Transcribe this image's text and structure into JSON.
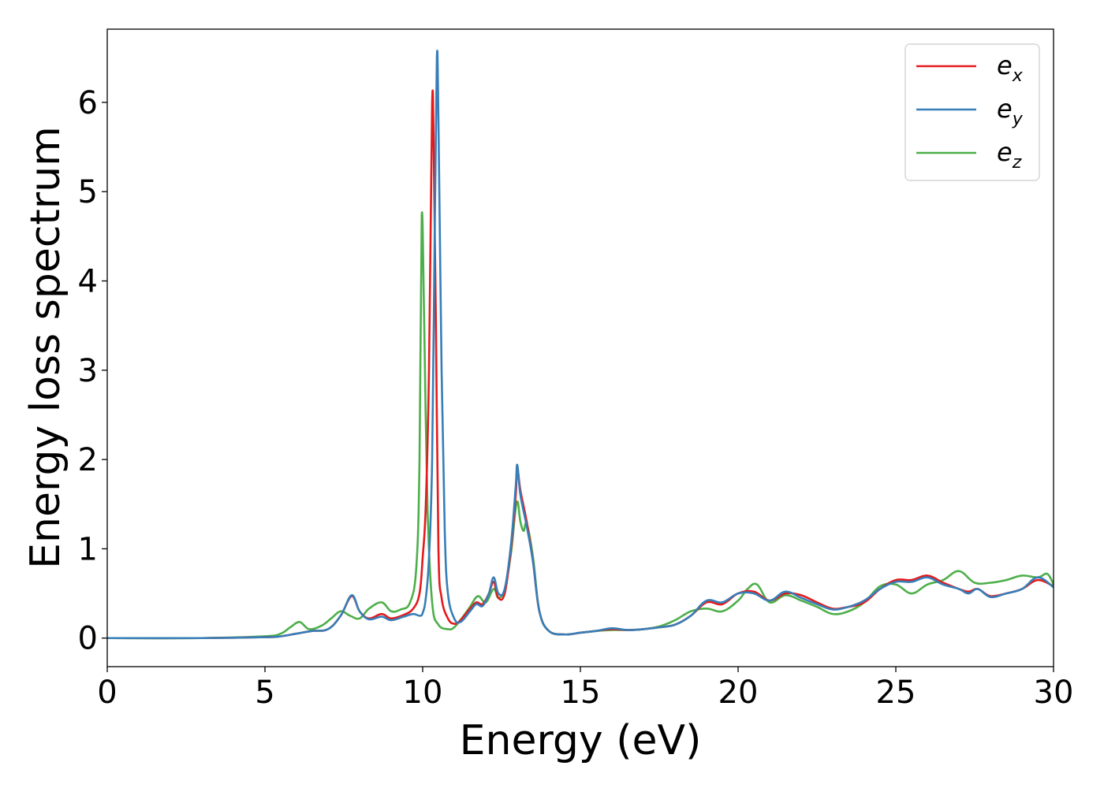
{
  "chart_data": {
    "type": "line",
    "title": "",
    "xlabel": "Energy (eV)",
    "ylabel": "Energy loss spectrum",
    "xlim": [
      0,
      30
    ],
    "ylim": [
      -0.32,
      6.82
    ],
    "xticks": [
      0,
      5,
      10,
      15,
      20,
      25,
      30
    ],
    "yticks": [
      0,
      1,
      2,
      3,
      4,
      5,
      6
    ],
    "grid": false,
    "legend_position": "top-right",
    "series": [
      {
        "name": "e_x",
        "legend_main": "e",
        "legend_sub": "x",
        "color": "#e41a1c",
        "x": [
          0,
          3,
          5,
          5.5,
          6,
          6.5,
          7,
          7.4,
          7.75,
          8.0,
          8.3,
          8.7,
          9.0,
          9.4,
          9.7,
          9.9,
          10.0,
          10.1,
          10.2,
          10.3,
          10.35,
          10.42,
          10.5,
          10.6,
          10.8,
          11.0,
          11.2,
          11.5,
          11.7,
          11.9,
          12.1,
          12.25,
          12.4,
          12.6,
          12.8,
          12.95,
          13.0,
          13.1,
          13.3,
          13.5,
          13.7,
          14.0,
          14.5,
          15,
          15.5,
          16,
          16.5,
          17,
          17.5,
          18,
          18.5,
          19,
          19.5,
          20,
          20.5,
          21,
          21.5,
          22,
          22.5,
          23,
          23.5,
          24,
          24.5,
          25,
          25.5,
          26,
          26.5,
          27,
          27.3,
          27.6,
          28,
          28.5,
          29,
          29.5,
          30
        ],
        "y": [
          0,
          0,
          0.01,
          0.02,
          0.05,
          0.08,
          0.1,
          0.25,
          0.47,
          0.3,
          0.22,
          0.27,
          0.22,
          0.26,
          0.33,
          0.5,
          0.9,
          1.5,
          3.0,
          5.99,
          5.5,
          3.5,
          1.0,
          0.45,
          0.22,
          0.16,
          0.2,
          0.33,
          0.4,
          0.38,
          0.5,
          0.63,
          0.45,
          0.5,
          1.0,
          1.6,
          1.9,
          1.65,
          1.3,
          0.85,
          0.3,
          0.08,
          0.04,
          0.06,
          0.08,
          0.1,
          0.09,
          0.1,
          0.12,
          0.15,
          0.25,
          0.4,
          0.38,
          0.5,
          0.52,
          0.42,
          0.5,
          0.48,
          0.4,
          0.33,
          0.35,
          0.4,
          0.55,
          0.65,
          0.65,
          0.7,
          0.62,
          0.55,
          0.52,
          0.55,
          0.47,
          0.5,
          0.55,
          0.65,
          0.58
        ]
      },
      {
        "name": "e_y",
        "legend_main": "e",
        "legend_sub": "y",
        "color": "#377eb8",
        "x": [
          0,
          3,
          5,
          5.5,
          6,
          6.5,
          7,
          7.4,
          7.75,
          8.0,
          8.3,
          8.7,
          9.0,
          9.4,
          9.7,
          9.9,
          10.0,
          10.1,
          10.2,
          10.3,
          10.38,
          10.45,
          10.5,
          10.6,
          10.7,
          10.8,
          11.0,
          11.2,
          11.5,
          11.7,
          11.9,
          12.1,
          12.25,
          12.4,
          12.6,
          12.8,
          12.95,
          13.0,
          13.1,
          13.3,
          13.5,
          13.7,
          14.0,
          14.5,
          15,
          15.5,
          16,
          16.5,
          17,
          17.5,
          18,
          18.5,
          19,
          19.5,
          20,
          20.5,
          21,
          21.5,
          22,
          22.5,
          23,
          23.5,
          24,
          24.5,
          25,
          25.5,
          26,
          26.5,
          27,
          27.3,
          27.6,
          28,
          28.5,
          29,
          29.5,
          30
        ],
        "y": [
          0,
          0,
          0.01,
          0.02,
          0.05,
          0.08,
          0.1,
          0.25,
          0.48,
          0.3,
          0.21,
          0.24,
          0.2,
          0.24,
          0.27,
          0.25,
          0.28,
          0.45,
          0.9,
          2.0,
          4.5,
          6.5,
          5.8,
          3.0,
          1.2,
          0.5,
          0.22,
          0.18,
          0.3,
          0.38,
          0.36,
          0.5,
          0.68,
          0.5,
          0.55,
          1.05,
          1.7,
          1.94,
          1.6,
          1.25,
          0.85,
          0.3,
          0.08,
          0.04,
          0.06,
          0.08,
          0.11,
          0.09,
          0.1,
          0.12,
          0.15,
          0.25,
          0.42,
          0.4,
          0.5,
          0.5,
          0.42,
          0.52,
          0.45,
          0.38,
          0.32,
          0.35,
          0.42,
          0.55,
          0.63,
          0.63,
          0.68,
          0.6,
          0.55,
          0.5,
          0.55,
          0.46,
          0.5,
          0.55,
          0.68,
          0.57
        ]
      },
      {
        "name": "e_z",
        "legend_main": "e",
        "legend_sub": "z",
        "color": "#4daf4a",
        "x": [
          0,
          3,
          5,
          5.5,
          5.8,
          6.1,
          6.4,
          6.8,
          7.1,
          7.4,
          7.7,
          8.0,
          8.3,
          8.7,
          9.0,
          9.3,
          9.6,
          9.8,
          9.9,
          9.97,
          10.05,
          10.15,
          10.3,
          10.5,
          10.8,
          11.0,
          11.3,
          11.5,
          11.75,
          12.0,
          12.25,
          12.4,
          12.6,
          12.8,
          12.98,
          13.1,
          13.2,
          13.3,
          13.5,
          13.7,
          14.0,
          14.5,
          15,
          15.5,
          16,
          16.5,
          17,
          17.5,
          18,
          18.5,
          19,
          19.5,
          20,
          20.3,
          20.6,
          21,
          21.5,
          22,
          22.5,
          23,
          23.5,
          24,
          24.5,
          25,
          25.5,
          26,
          26.5,
          27,
          27.5,
          28,
          28.5,
          29,
          29.5,
          29.8,
          30
        ],
        "y": [
          0,
          0,
          0.02,
          0.05,
          0.12,
          0.18,
          0.1,
          0.14,
          0.22,
          0.3,
          0.25,
          0.22,
          0.33,
          0.4,
          0.3,
          0.32,
          0.4,
          0.8,
          2.0,
          4.72,
          3.5,
          1.5,
          0.4,
          0.15,
          0.1,
          0.12,
          0.25,
          0.35,
          0.47,
          0.4,
          0.55,
          0.45,
          0.55,
          0.95,
          1.52,
          1.3,
          1.2,
          1.28,
          0.9,
          0.3,
          0.08,
          0.04,
          0.06,
          0.08,
          0.09,
          0.09,
          0.1,
          0.13,
          0.2,
          0.3,
          0.33,
          0.3,
          0.42,
          0.55,
          0.6,
          0.4,
          0.48,
          0.42,
          0.35,
          0.27,
          0.3,
          0.4,
          0.58,
          0.6,
          0.5,
          0.6,
          0.65,
          0.75,
          0.62,
          0.62,
          0.65,
          0.7,
          0.68,
          0.72,
          0.6
        ]
      }
    ]
  }
}
